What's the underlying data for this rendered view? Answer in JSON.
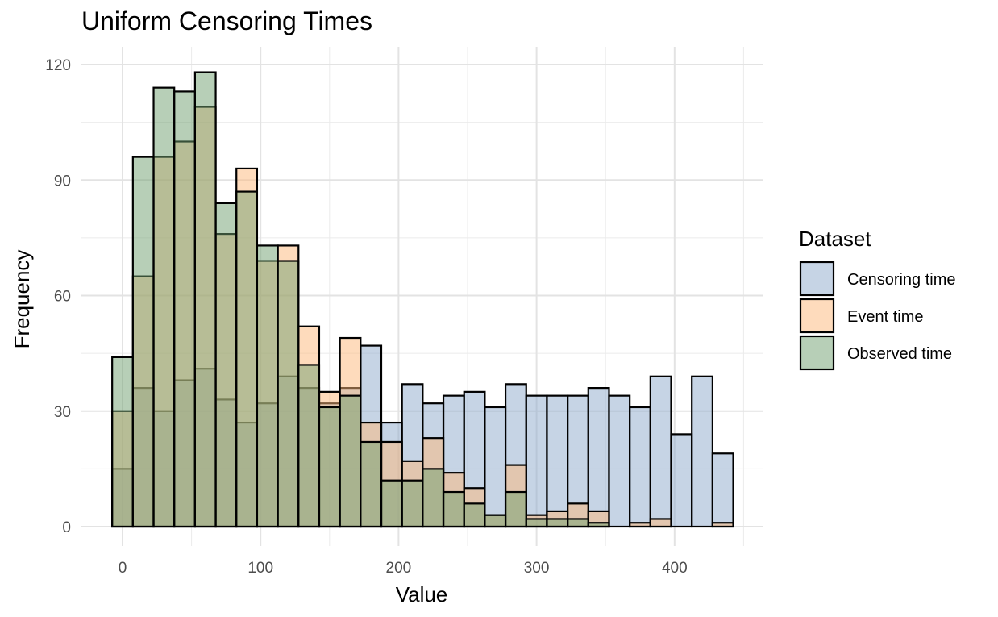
{
  "chart_data": {
    "type": "bar",
    "subtype": "overlaid-histogram",
    "title": "Uniform Censoring Times",
    "xlabel": "Value",
    "ylabel": "Frequency",
    "xlim": [
      -10,
      450
    ],
    "ylim": [
      -5,
      120
    ],
    "x_ticks": [
      0,
      100,
      200,
      300,
      400
    ],
    "y_ticks": [
      0,
      30,
      60,
      90,
      120
    ],
    "grid": true,
    "legend_position": "right",
    "legend_title": "Dataset",
    "bin_width": 15,
    "x": [
      0,
      15,
      30,
      45,
      60,
      75,
      90,
      105,
      120,
      135,
      150,
      165,
      180,
      195,
      210,
      225,
      240,
      255,
      270,
      285,
      300,
      315,
      330,
      345,
      360,
      375,
      390,
      405,
      420,
      435
    ],
    "series": [
      {
        "name": "Censoring time",
        "color": "#8DA9CB",
        "values": [
          15,
          36,
          30,
          38,
          41,
          33,
          27,
          32,
          39,
          36,
          32,
          36,
          47,
          27,
          37,
          32,
          34,
          35,
          31,
          37,
          34,
          34,
          34,
          36,
          34,
          31,
          39,
          24,
          39,
          19
        ]
      },
      {
        "name": "Event time",
        "color": "#FDB77A",
        "values": [
          30,
          65,
          96,
          100,
          109,
          76,
          93,
          69,
          73,
          52,
          35,
          49,
          27,
          22,
          17,
          23,
          14,
          10,
          3,
          16,
          3,
          4,
          6,
          4,
          0,
          1,
          2,
          0,
          0,
          1
        ]
      },
      {
        "name": "Observed time",
        "color": "#6FA06F",
        "values": [
          44,
          96,
          114,
          113,
          118,
          84,
          87,
          73,
          69,
          42,
          31,
          34,
          22,
          12,
          12,
          15,
          9,
          6,
          3,
          9,
          2,
          2,
          2,
          1,
          0,
          0,
          0,
          0,
          0,
          0
        ]
      }
    ]
  }
}
